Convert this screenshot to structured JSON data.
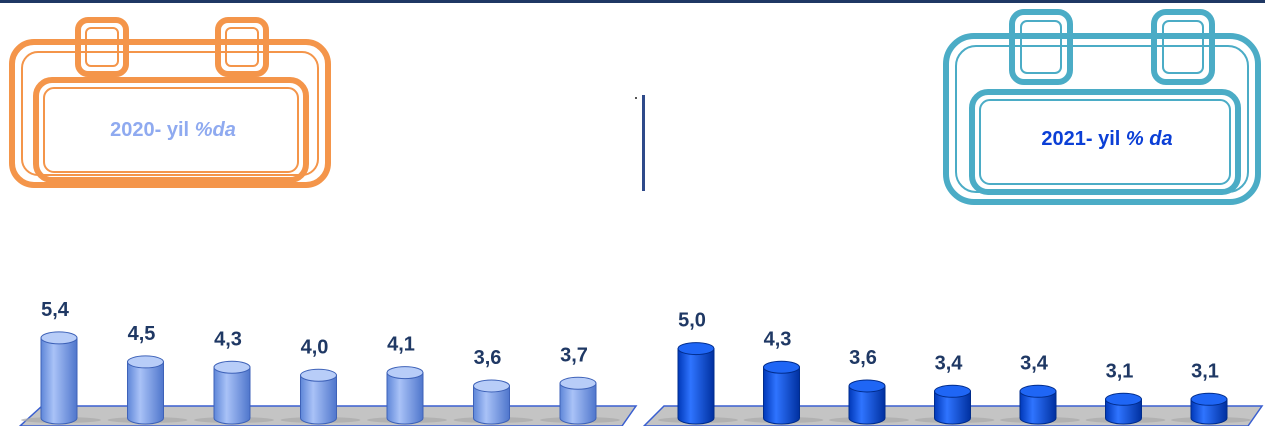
{
  "calendars": [
    {
      "year_text": "2020- yil ",
      "suffix": "%da",
      "frame_color": "#f4954a",
      "text_color": "#8faaf0"
    },
    {
      "year_text": "2021- yil ",
      "suffix": "% da",
      "frame_color": "#4bacc6",
      "text_color": "#0b3fd6"
    }
  ],
  "chart_data": [
    {
      "type": "bar",
      "title": "2020- yil %da",
      "values": [
        5.4,
        4.5,
        4.3,
        4.0,
        4.1,
        3.6,
        3.7
      ],
      "value_labels": [
        "5,4",
        "4,5",
        "4,3",
        "4,0",
        "4,1",
        "3,6",
        "3,7"
      ],
      "bar_color": "#7ba2ee",
      "ylim": [
        0,
        6
      ]
    },
    {
      "type": "bar",
      "title": "2021- yil % da",
      "values": [
        5.0,
        4.3,
        3.6,
        3.4,
        3.4,
        3.1,
        3.1
      ],
      "value_labels": [
        "5,0",
        "4,3",
        "3,6",
        "3,4",
        "3,4",
        "3,1",
        "3,1"
      ],
      "bar_color": "#0a52e0",
      "ylim": [
        0,
        6
      ]
    }
  ]
}
